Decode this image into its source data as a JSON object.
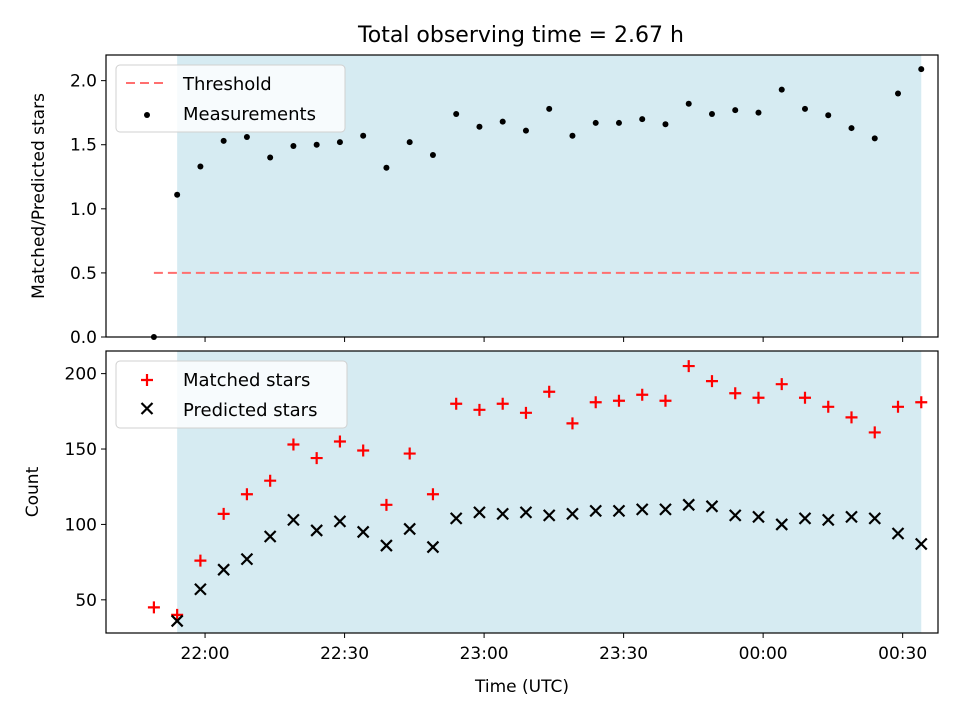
{
  "title": "Total observing time = 2.67 h",
  "colors": {
    "shade": "#add8e6",
    "threshold": "#ff6f6f",
    "measurements": "#000000",
    "matched": "#ff0000",
    "predicted": "#000000"
  },
  "chart_data": [
    {
      "type": "scatter",
      "ylabel": "Matched/Predicted stars",
      "ylim": [
        0,
        2.2
      ],
      "yticks": [
        0.0,
        0.5,
        1.0,
        1.5,
        2.0
      ],
      "ytick_labels": [
        "0.0",
        "0.5",
        "1.0",
        "1.5",
        "2.0"
      ],
      "legend_position": "top-left",
      "threshold": {
        "name": "Threshold",
        "value": 0.5
      },
      "series": [
        {
          "name": "Measurements",
          "x": [
            "21:49",
            "21:54",
            "21:59",
            "22:04",
            "22:09",
            "22:14",
            "22:19",
            "22:24",
            "22:29",
            "22:34",
            "22:39",
            "22:44",
            "22:49",
            "22:54",
            "22:59",
            "23:04",
            "23:09",
            "23:14",
            "23:19",
            "23:24",
            "23:29",
            "23:34",
            "23:39",
            "23:44",
            "23:49",
            "23:54",
            "23:59",
            "00:04",
            "00:09",
            "00:14",
            "00:19",
            "00:24",
            "00:29",
            "00:34"
          ],
          "values": [
            0.0,
            1.11,
            1.33,
            1.53,
            1.56,
            1.4,
            1.49,
            1.5,
            1.52,
            1.57,
            1.32,
            1.52,
            1.42,
            1.74,
            1.64,
            1.68,
            1.61,
            1.78,
            1.57,
            1.67,
            1.67,
            1.7,
            1.66,
            1.82,
            1.74,
            1.77,
            1.75,
            1.93,
            1.78,
            1.73,
            1.63,
            1.55,
            1.9,
            2.09
          ]
        }
      ]
    },
    {
      "type": "scatter",
      "xlabel": "Time (UTC)",
      "ylabel": "Count",
      "ylim": [
        28,
        215
      ],
      "yticks": [
        50,
        100,
        150,
        200
      ],
      "ytick_labels": [
        "50",
        "100",
        "150",
        "200"
      ],
      "xtick_labels": [
        "22:00",
        "22:30",
        "23:00",
        "23:30",
        "00:00",
        "00:30"
      ],
      "legend_position": "top-left",
      "series": [
        {
          "name": "Matched stars",
          "marker": "+",
          "x": [
            "21:49",
            "21:54",
            "21:59",
            "22:04",
            "22:09",
            "22:14",
            "22:19",
            "22:24",
            "22:29",
            "22:34",
            "22:39",
            "22:44",
            "22:49",
            "22:54",
            "22:59",
            "23:04",
            "23:09",
            "23:14",
            "23:19",
            "23:24",
            "23:29",
            "23:34",
            "23:39",
            "23:44",
            "23:49",
            "23:54",
            "23:59",
            "00:04",
            "00:09",
            "00:14",
            "00:19",
            "00:24",
            "00:29",
            "00:34"
          ],
          "values": [
            45,
            40,
            76,
            107,
            120,
            129,
            153,
            144,
            155,
            149,
            113,
            147,
            120,
            180,
            176,
            180,
            174,
            188,
            167,
            181,
            182,
            186,
            182,
            205,
            195,
            187,
            184,
            193,
            184,
            178,
            171,
            161,
            178,
            181
          ]
        },
        {
          "name": "Predicted stars",
          "marker": "x",
          "x": [
            "21:54",
            "21:59",
            "22:04",
            "22:09",
            "22:14",
            "22:19",
            "22:24",
            "22:29",
            "22:34",
            "22:39",
            "22:44",
            "22:49",
            "22:54",
            "22:59",
            "23:04",
            "23:09",
            "23:14",
            "23:19",
            "23:24",
            "23:29",
            "23:34",
            "23:39",
            "23:44",
            "23:49",
            "23:54",
            "23:59",
            "00:04",
            "00:09",
            "00:14",
            "00:19",
            "00:24",
            "00:29",
            "00:34"
          ],
          "values": [
            36,
            57,
            70,
            77,
            92,
            103,
            96,
            102,
            95,
            86,
            97,
            85,
            104,
            108,
            107,
            108,
            106,
            107,
            109,
            109,
            110,
            110,
            113,
            112,
            106,
            105,
            100,
            104,
            103,
            105,
            104,
            94,
            87
          ]
        }
      ]
    }
  ]
}
